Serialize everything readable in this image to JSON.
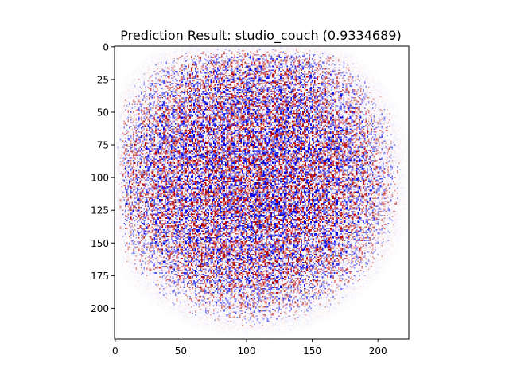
{
  "chart_data": {
    "type": "heatmap",
    "title": "Prediction Result: studio_couch (0.9334689)",
    "xlabel": "",
    "ylabel": "",
    "xlim": [
      -0.5,
      223.5
    ],
    "ylim": [
      223.5,
      -0.5
    ],
    "x_ticks": [
      0,
      50,
      100,
      150,
      200
    ],
    "y_ticks": [
      0,
      25,
      50,
      75,
      100,
      125,
      150,
      175,
      200
    ],
    "image_size": [
      224,
      224
    ],
    "colormap": "seismic",
    "colors": {
      "positive": "#b40000",
      "negative": "#0000e6",
      "neutral": "#ffffff"
    },
    "grid": false
  }
}
